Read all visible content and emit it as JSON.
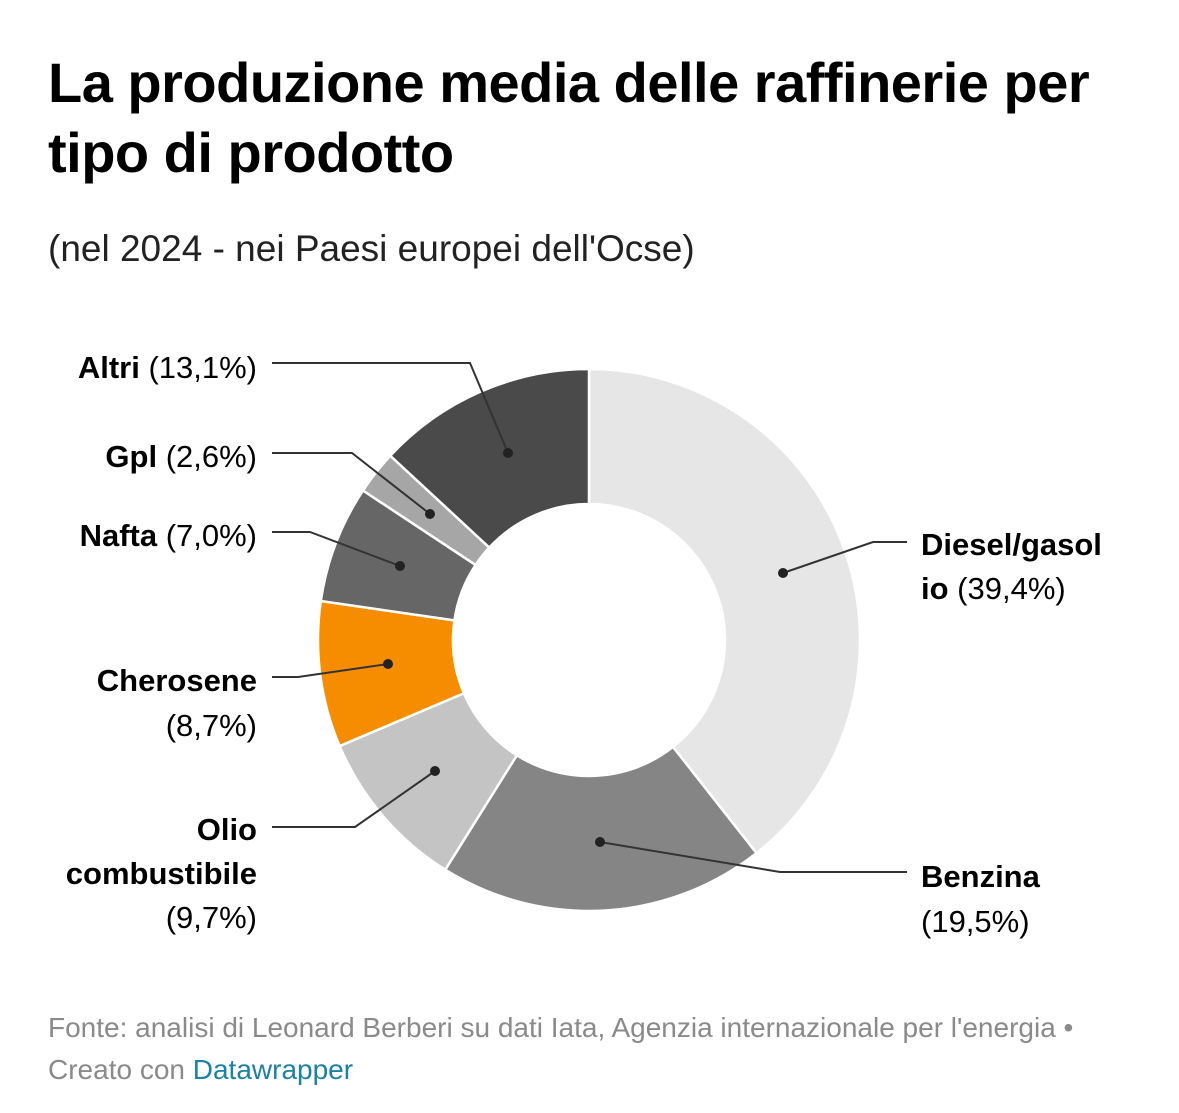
{
  "header": {
    "title": "La produzione media delle raffinerie per tipo di prodotto",
    "subtitle": "(nel 2024 - nei Paesi europei dell'Ocse)"
  },
  "chart_data": {
    "type": "pie",
    "variant": "donut",
    "title": "La produzione media delle raffinerie per tipo di prodotto",
    "subtitle": "(nel 2024 - nei Paesi europei dell'Ocse)",
    "unit": "%",
    "slices": [
      {
        "name": "Diesel/gasolio",
        "value": 39.4,
        "value_label": "(39,4%)",
        "color": "#e6e6e6",
        "label_lines": [
          {
            "bold": "Diesel/gasol",
            "normal": ""
          },
          {
            "bold": "io",
            "normal": " (39,4%)"
          }
        ]
      },
      {
        "name": "Benzina",
        "value": 19.5,
        "value_label": "(19,5%)",
        "color": "#858585",
        "label_lines": [
          {
            "bold": "Benzina",
            "normal": ""
          },
          {
            "bold": "",
            "normal": "(19,5%)"
          }
        ]
      },
      {
        "name": "Olio combustibile",
        "value": 9.7,
        "value_label": "(9,7%)",
        "color": "#c4c4c4",
        "label_lines": [
          {
            "bold": "Olio",
            "normal": ""
          },
          {
            "bold": "combustibile",
            "normal": ""
          },
          {
            "bold": "",
            "normal": "(9,7%)"
          }
        ]
      },
      {
        "name": "Cherosene",
        "value": 8.7,
        "value_label": "(8,7%)",
        "color": "#f68c00",
        "label_lines": [
          {
            "bold": "Cherosene",
            "normal": ""
          },
          {
            "bold": "",
            "normal": "(8,7%)"
          }
        ]
      },
      {
        "name": "Nafta",
        "value": 7.0,
        "value_label": "(7,0%)",
        "color": "#666666",
        "label_lines": [
          {
            "bold": "Nafta",
            "normal": " (7,0%)"
          }
        ]
      },
      {
        "name": "Gpl",
        "value": 2.6,
        "value_label": "(2,6%)",
        "color": "#a6a6a6",
        "label_lines": [
          {
            "bold": "Gpl",
            "normal": " (2,6%)"
          }
        ]
      },
      {
        "name": "Altri",
        "value": 13.1,
        "value_label": "(13,1%)",
        "color": "#4a4a4a",
        "label_lines": [
          {
            "bold": "Altri",
            "normal": " (13,1%)"
          }
        ]
      }
    ]
  },
  "footer": {
    "source": "Fonte: analisi di Leonard Berberi su dati Iata, Agenzia internazionale per l'energia",
    "separator": " • ",
    "created_with": "Creato con ",
    "tool": "Datawrapper"
  }
}
